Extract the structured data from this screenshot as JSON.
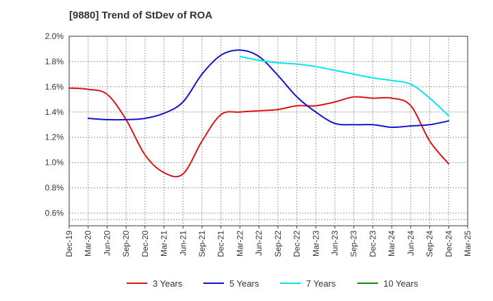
{
  "chart_data": {
    "type": "line",
    "title": "[9880]  Trend of StDev of ROA",
    "xlabel": "",
    "ylabel": "",
    "x": [
      "2019-12",
      "2020-03",
      "2020-06",
      "2020-09",
      "2020-12",
      "2021-03",
      "2021-06",
      "2021-09",
      "2021-12",
      "2022-03",
      "2022-06",
      "2022-09",
      "2022-12",
      "2023-03",
      "2023-06",
      "2023-09",
      "2023-12",
      "2024-03",
      "2024-06",
      "2024-09",
      "2024-12"
    ],
    "x_tick_labels": [
      "Dec-19",
      "Mar-20",
      "Jun-20",
      "Sep-20",
      "Dec-20",
      "Mar-21",
      "Jun-21",
      "Sep-21",
      "Dec-21",
      "Mar-22",
      "Jun-22",
      "Sep-22",
      "Dec-22",
      "Mar-23",
      "Jun-23",
      "Sep-23",
      "Dec-23",
      "Mar-24",
      "Jun-24",
      "Sep-24",
      "Dec-24",
      "Mar-25"
    ],
    "y_tick_labels": [
      "2.0%",
      "1.8%",
      "1.6%",
      "1.4%",
      "1.2%",
      "1.0%",
      "0.8%",
      "0.6%"
    ],
    "ylim": [
      0.5,
      2.0
    ],
    "grid": true,
    "legend_position": "bottom",
    "series": [
      {
        "name": "3 Years",
        "color": "#dd1111",
        "values": [
          1.59,
          1.58,
          1.54,
          1.34,
          1.06,
          0.92,
          0.91,
          1.17,
          1.38,
          1.4,
          1.41,
          1.42,
          1.45,
          1.45,
          1.48,
          1.52,
          1.51,
          1.51,
          1.45,
          1.17,
          0.99
        ]
      },
      {
        "name": "5 Years",
        "color": "#1111cc",
        "values": [
          null,
          1.35,
          1.34,
          1.34,
          1.35,
          1.39,
          1.48,
          1.7,
          1.85,
          1.89,
          1.84,
          1.69,
          1.52,
          1.4,
          1.31,
          1.3,
          1.3,
          1.28,
          1.29,
          1.3,
          1.33
        ]
      },
      {
        "name": "7 Years",
        "color": "#00e5ee",
        "values": [
          null,
          null,
          null,
          null,
          null,
          null,
          null,
          null,
          null,
          1.84,
          1.81,
          1.79,
          1.78,
          1.76,
          1.73,
          1.7,
          1.67,
          1.65,
          1.62,
          1.51,
          1.37
        ]
      },
      {
        "name": "10 Years",
        "color": "#118811",
        "values": [
          null,
          null,
          null,
          null,
          null,
          null,
          null,
          null,
          null,
          null,
          null,
          null,
          null,
          null,
          null,
          null,
          null,
          null,
          null,
          null,
          null
        ]
      }
    ]
  }
}
